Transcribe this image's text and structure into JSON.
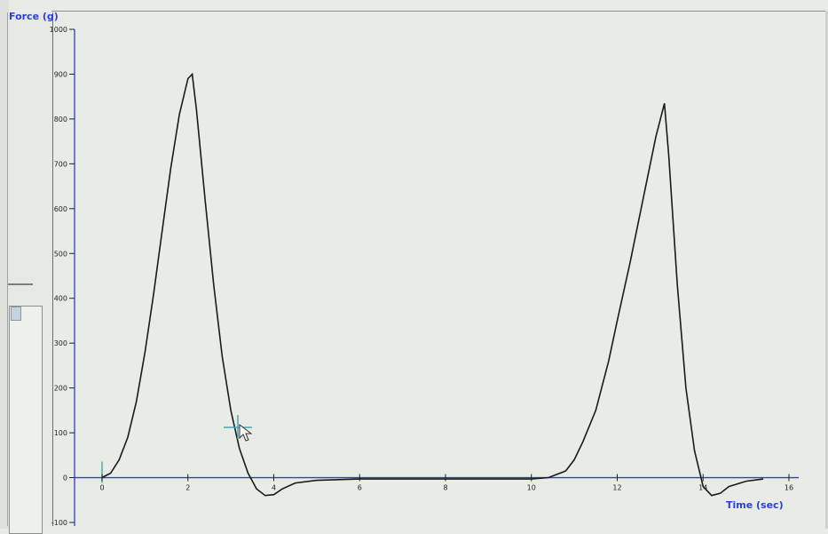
{
  "chart_data": {
    "type": "line",
    "title": "",
    "xlabel": "Time (sec)",
    "ylabel": "Force (g)",
    "xlim": [
      0,
      16
    ],
    "ylim": [
      -100,
      1000
    ],
    "x_ticks": [
      0,
      2,
      4,
      6,
      8,
      10,
      12,
      14,
      16
    ],
    "x_tick_labels": [
      "0",
      "2",
      "4",
      "6",
      "8",
      "10",
      "12",
      "14",
      "16"
    ],
    "y_ticks": [
      -100,
      0,
      100,
      200,
      300,
      400,
      500,
      600,
      700,
      800,
      900,
      1000
    ],
    "y_tick_labels": [
      "-100",
      "0",
      "100",
      "200",
      "300",
      "400",
      "500",
      "600",
      "700",
      "800",
      "900",
      "1000"
    ],
    "grid": false,
    "series": [
      {
        "x": [
          0,
          0.2,
          0.4,
          0.6,
          0.8,
          1.0,
          1.2,
          1.4,
          1.6,
          1.8,
          2.0,
          2.1,
          2.2,
          2.4,
          2.6,
          2.8,
          3.0,
          3.2,
          3.4,
          3.6,
          3.8,
          4.0,
          4.2,
          4.5,
          5.0,
          6.0,
          8.0,
          10.0,
          10.4,
          10.8,
          11.0,
          11.2,
          11.5,
          11.8,
          12.0,
          12.3,
          12.6,
          12.9,
          13.1,
          13.2,
          13.4,
          13.6,
          13.8,
          14.0,
          14.2,
          14.4,
          14.6,
          15.0,
          15.4
        ],
        "y": [
          0,
          10,
          40,
          90,
          170,
          280,
          410,
          550,
          690,
          810,
          890,
          900,
          820,
          620,
          430,
          270,
          150,
          65,
          10,
          -25,
          -40,
          -38,
          -25,
          -12,
          -6,
          -3,
          -3,
          -3,
          0,
          15,
          40,
          80,
          150,
          260,
          350,
          480,
          620,
          760,
          835,
          720,
          430,
          200,
          60,
          -20,
          -40,
          -35,
          -20,
          -8,
          -3
        ],
        "color": "#1a1a1a"
      }
    ],
    "colors": {
      "axis": "#2d3fd8",
      "series": "#1a1a1a",
      "background": "#e9ebe6"
    }
  },
  "cursor_icon": "crosshair-cursor-icon"
}
